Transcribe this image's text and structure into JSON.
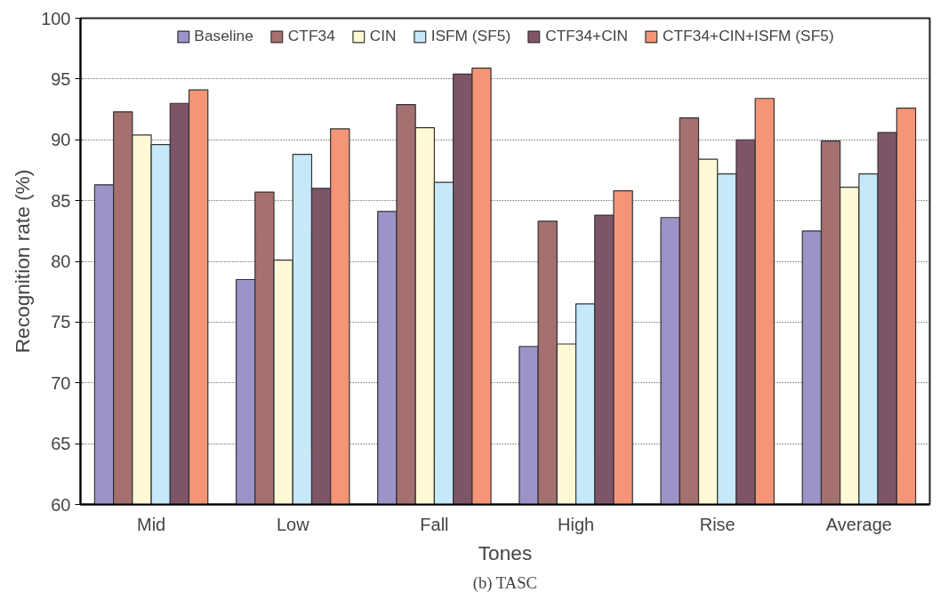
{
  "chart_data": {
    "type": "bar",
    "xlabel": "Tones",
    "ylabel": "Recognition rate (%)",
    "categories": [
      "Mid",
      "Low",
      "Fall",
      "High",
      "Rise",
      "Average"
    ],
    "series": [
      {
        "name": "Baseline",
        "color": "#9a94c8",
        "values": [
          86.3,
          78.5,
          84.1,
          73.0,
          83.6,
          82.5
        ]
      },
      {
        "name": "CTF34",
        "color": "#a47070",
        "values": [
          92.3,
          85.7,
          92.9,
          83.3,
          91.8,
          89.9
        ]
      },
      {
        "name": "CIN",
        "color": "#fff9d6",
        "values": [
          90.4,
          80.1,
          91.0,
          73.2,
          88.4,
          86.1
        ]
      },
      {
        "name": "ISFM (SF5)",
        "color": "#c6e9f9",
        "values": [
          89.6,
          88.8,
          86.5,
          76.5,
          87.2,
          87.2
        ]
      },
      {
        "name": "CTF34+CIN",
        "color": "#7e5468",
        "values": [
          93.0,
          86.0,
          95.4,
          83.8,
          90.0,
          90.6
        ]
      },
      {
        "name": "CTF34+CIN+ISFM (SF5)",
        "color": "#f39576",
        "values": [
          94.1,
          90.9,
          95.9,
          85.8,
          93.4,
          92.6
        ]
      }
    ],
    "ylim": [
      60,
      100
    ],
    "yticks": [
      60,
      65,
      70,
      75,
      80,
      85,
      90,
      95,
      100
    ],
    "grid": "y",
    "legend": "top",
    "annotations": [
      "(b) TASC"
    ]
  }
}
